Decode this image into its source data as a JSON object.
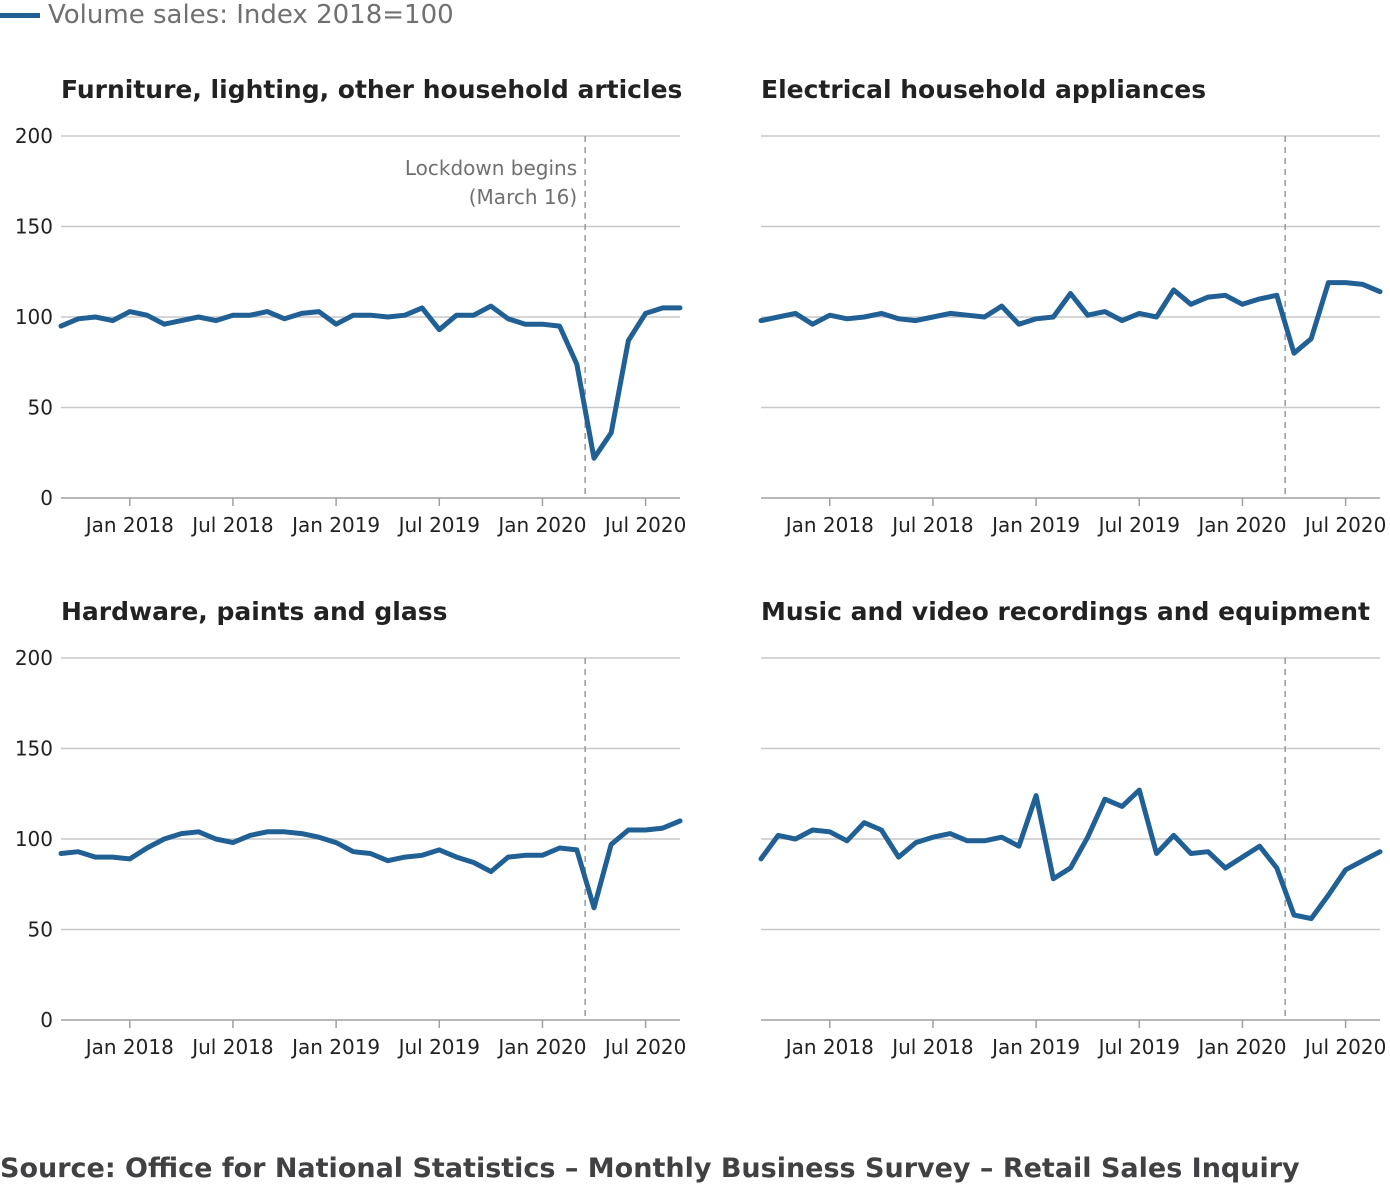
{
  "legend": {
    "label": "Volume sales: Index 2018=100",
    "color": "#206095"
  },
  "source": "Source: Office for National Statistics – Monthly Business Survey – Retail Sales Inquiry",
  "chart_data": [
    {
      "type": "line",
      "title": "Furniture, lighting, other household articles",
      "ylim": [
        0,
        200
      ],
      "yticks": [
        0,
        50,
        100,
        150,
        200
      ],
      "xlim": [
        "2017-09",
        "2020-09"
      ],
      "xticks": [
        {
          "date": "2018-01",
          "label": "Jan 2018"
        },
        {
          "date": "2018-07",
          "label": "Jul 2018"
        },
        {
          "date": "2019-01",
          "label": "Jan 2019"
        },
        {
          "date": "2019-07",
          "label": "Jul 2019"
        },
        {
          "date": "2020-01",
          "label": "Jan 2020"
        },
        {
          "date": "2020-07",
          "label": "Jul 2020"
        }
      ],
      "grid": true,
      "annotation": {
        "date": "2020-03-16",
        "lines": [
          "Lockdown begins",
          "(March 16)"
        ]
      },
      "x": [
        "2017-09",
        "2017-10",
        "2017-11",
        "2017-12",
        "2018-01",
        "2018-02",
        "2018-03",
        "2018-04",
        "2018-05",
        "2018-06",
        "2018-07",
        "2018-08",
        "2018-09",
        "2018-10",
        "2018-11",
        "2018-12",
        "2019-01",
        "2019-02",
        "2019-03",
        "2019-04",
        "2019-05",
        "2019-06",
        "2019-07",
        "2019-08",
        "2019-09",
        "2019-10",
        "2019-11",
        "2019-12",
        "2020-01",
        "2020-02",
        "2020-03",
        "2020-04",
        "2020-05",
        "2020-06",
        "2020-07",
        "2020-08",
        "2020-09"
      ],
      "series": [
        {
          "values": [
            95,
            99,
            100,
            98,
            103,
            101,
            96,
            98,
            100,
            98,
            101,
            101,
            103,
            99,
            102,
            103,
            96,
            101,
            101,
            100,
            101,
            105,
            93,
            101,
            101,
            106,
            99,
            96,
            96,
            95,
            74,
            22,
            36,
            87,
            102,
            105,
            105
          ]
        }
      ]
    },
    {
      "type": "line",
      "title": "Electrical household appliances",
      "ylim": [
        0,
        200
      ],
      "yticks": [
        0,
        50,
        100,
        150,
        200
      ],
      "xlim": [
        "2017-09",
        "2020-09"
      ],
      "xticks": [
        {
          "date": "2018-01",
          "label": "Jan 2018"
        },
        {
          "date": "2018-07",
          "label": "Jul 2018"
        },
        {
          "date": "2019-01",
          "label": "Jan 2019"
        },
        {
          "date": "2019-07",
          "label": "Jul 2019"
        },
        {
          "date": "2020-01",
          "label": "Jan 2020"
        },
        {
          "date": "2020-07",
          "label": "Jul 2020"
        }
      ],
      "grid": true,
      "annotation": {
        "date": "2020-03-16",
        "lines": []
      },
      "x": [
        "2017-09",
        "2017-10",
        "2017-11",
        "2017-12",
        "2018-01",
        "2018-02",
        "2018-03",
        "2018-04",
        "2018-05",
        "2018-06",
        "2018-07",
        "2018-08",
        "2018-09",
        "2018-10",
        "2018-11",
        "2018-12",
        "2019-01",
        "2019-02",
        "2019-03",
        "2019-04",
        "2019-05",
        "2019-06",
        "2019-07",
        "2019-08",
        "2019-09",
        "2019-10",
        "2019-11",
        "2019-12",
        "2020-01",
        "2020-02",
        "2020-03",
        "2020-04",
        "2020-05",
        "2020-06",
        "2020-07",
        "2020-08",
        "2020-09"
      ],
      "series": [
        {
          "values": [
            98,
            100,
            102,
            96,
            101,
            99,
            100,
            102,
            99,
            98,
            100,
            102,
            101,
            100,
            106,
            96,
            99,
            100,
            113,
            101,
            103,
            98,
            102,
            100,
            115,
            107,
            111,
            112,
            107,
            110,
            112,
            80,
            88,
            119,
            119,
            118,
            114
          ]
        }
      ]
    },
    {
      "type": "line",
      "title": "Hardware, paints and glass",
      "ylim": [
        0,
        200
      ],
      "yticks": [
        0,
        50,
        100,
        150,
        200
      ],
      "xlim": [
        "2017-09",
        "2020-09"
      ],
      "xticks": [
        {
          "date": "2018-01",
          "label": "Jan 2018"
        },
        {
          "date": "2018-07",
          "label": "Jul 2018"
        },
        {
          "date": "2019-01",
          "label": "Jan 2019"
        },
        {
          "date": "2019-07",
          "label": "Jul 2019"
        },
        {
          "date": "2020-01",
          "label": "Jan 2020"
        },
        {
          "date": "2020-07",
          "label": "Jul 2020"
        }
      ],
      "grid": true,
      "annotation": {
        "date": "2020-03-16",
        "lines": []
      },
      "x": [
        "2017-09",
        "2017-10",
        "2017-11",
        "2017-12",
        "2018-01",
        "2018-02",
        "2018-03",
        "2018-04",
        "2018-05",
        "2018-06",
        "2018-07",
        "2018-08",
        "2018-09",
        "2018-10",
        "2018-11",
        "2018-12",
        "2019-01",
        "2019-02",
        "2019-03",
        "2019-04",
        "2019-05",
        "2019-06",
        "2019-07",
        "2019-08",
        "2019-09",
        "2019-10",
        "2019-11",
        "2019-12",
        "2020-01",
        "2020-02",
        "2020-03",
        "2020-04",
        "2020-05",
        "2020-06",
        "2020-07",
        "2020-08",
        "2020-09"
      ],
      "series": [
        {
          "values": [
            92,
            93,
            90,
            90,
            89,
            95,
            100,
            103,
            104,
            100,
            98,
            102,
            104,
            104,
            103,
            101,
            98,
            93,
            92,
            88,
            90,
            91,
            94,
            90,
            87,
            82,
            90,
            91,
            91,
            95,
            94,
            62,
            97,
            105,
            105,
            106,
            110
          ]
        }
      ]
    },
    {
      "type": "line",
      "title": "Music and video recordings and equipment",
      "ylim": [
        0,
        200
      ],
      "yticks": [
        0,
        50,
        100,
        150,
        200
      ],
      "xlim": [
        "2017-09",
        "2020-09"
      ],
      "xticks": [
        {
          "date": "2018-01",
          "label": "Jan 2018"
        },
        {
          "date": "2018-07",
          "label": "Jul 2018"
        },
        {
          "date": "2019-01",
          "label": "Jan 2019"
        },
        {
          "date": "2019-07",
          "label": "Jul 2019"
        },
        {
          "date": "2020-01",
          "label": "Jan 2020"
        },
        {
          "date": "2020-07",
          "label": "Jul 2020"
        }
      ],
      "grid": true,
      "annotation": {
        "date": "2020-03-16",
        "lines": []
      },
      "x": [
        "2017-09",
        "2017-10",
        "2017-11",
        "2017-12",
        "2018-01",
        "2018-02",
        "2018-03",
        "2018-04",
        "2018-05",
        "2018-06",
        "2018-07",
        "2018-08",
        "2018-09",
        "2018-10",
        "2018-11",
        "2018-12",
        "2019-01",
        "2019-02",
        "2019-03",
        "2019-04",
        "2019-05",
        "2019-06",
        "2019-07",
        "2019-08",
        "2019-09",
        "2019-10",
        "2019-11",
        "2019-12",
        "2020-01",
        "2020-02",
        "2020-03",
        "2020-04",
        "2020-05",
        "2020-06",
        "2020-07",
        "2020-08",
        "2020-09"
      ],
      "series": [
        {
          "values": [
            89,
            102,
            100,
            105,
            104,
            99,
            109,
            105,
            90,
            98,
            101,
            103,
            99,
            99,
            101,
            96,
            124,
            78,
            84,
            101,
            122,
            118,
            127,
            92,
            102,
            92,
            93,
            84,
            90,
            96,
            84,
            58,
            56,
            69,
            83,
            88,
            93
          ]
        }
      ]
    }
  ]
}
